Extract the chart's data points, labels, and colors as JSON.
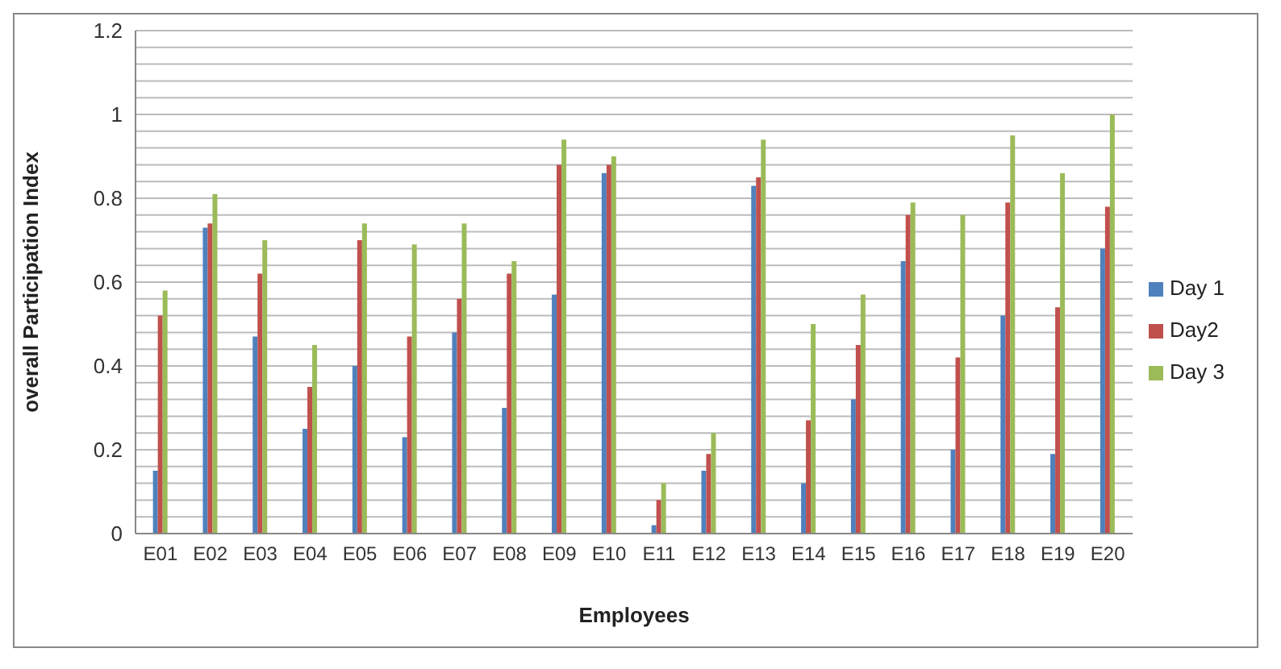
{
  "chart_data": {
    "type": "bar",
    "xlabel": "Employees",
    "ylabel": "overall Participation Index",
    "categories": [
      "E01",
      "E02",
      "E03",
      "E04",
      "E05",
      "E06",
      "E07",
      "E08",
      "E09",
      "E10",
      "E11",
      "E12",
      "E13",
      "E14",
      "E15",
      "E16",
      "E17",
      "E18",
      "E19",
      "E20"
    ],
    "series": [
      {
        "name": "Day 1",
        "color": "#4f81bd",
        "values": [
          0.15,
          0.73,
          0.47,
          0.25,
          0.4,
          0.23,
          0.48,
          0.3,
          0.57,
          0.86,
          0.02,
          0.15,
          0.83,
          0.12,
          0.32,
          0.65,
          0.2,
          0.52,
          0.19,
          0.68
        ]
      },
      {
        "name": "Day2",
        "color": "#c0504d",
        "values": [
          0.52,
          0.74,
          0.62,
          0.35,
          0.7,
          0.47,
          0.56,
          0.62,
          0.88,
          0.88,
          0.08,
          0.19,
          0.85,
          0.27,
          0.45,
          0.76,
          0.42,
          0.79,
          0.54,
          0.78
        ]
      },
      {
        "name": "Day 3",
        "color": "#9bbb59",
        "values": [
          0.58,
          0.81,
          0.7,
          0.45,
          0.74,
          0.69,
          0.74,
          0.65,
          0.94,
          0.9,
          0.12,
          0.24,
          0.94,
          0.5,
          0.57,
          0.79,
          0.76,
          0.95,
          0.86,
          1.0
        ]
      }
    ],
    "ylim": [
      0,
      1.2
    ],
    "yticks": [
      0,
      {
        "value": 0.04,
        "label": null
      },
      {
        "value": 0.08,
        "label": null
      },
      {
        "value": 0.12,
        "label": null
      },
      {
        "value": 0.16,
        "label": null
      },
      0.2,
      {
        "value": 0.24,
        "label": null
      },
      {
        "value": 0.28,
        "label": null
      },
      {
        "value": 0.32,
        "label": null
      },
      {
        "value": 0.36,
        "label": null
      },
      0.4,
      {
        "value": 0.44,
        "label": null
      },
      {
        "value": 0.48,
        "label": null
      },
      {
        "value": 0.52,
        "label": null
      },
      {
        "value": 0.56,
        "label": null
      },
      0.6,
      {
        "value": 0.64,
        "label": null
      },
      {
        "value": 0.68,
        "label": null
      },
      {
        "value": 0.72,
        "label": null
      },
      {
        "value": 0.76,
        "label": null
      },
      0.8,
      {
        "value": 0.84,
        "label": null
      },
      {
        "value": 0.88,
        "label": null
      },
      {
        "value": 0.92,
        "label": null
      },
      {
        "value": 0.96,
        "label": null
      },
      1,
      {
        "value": 1.04,
        "label": null
      },
      {
        "value": 1.08,
        "label": null
      },
      {
        "value": 1.12,
        "label": null
      },
      {
        "value": 1.16,
        "label": null
      },
      1.2
    ],
    "grid": "y",
    "legend": "right"
  }
}
